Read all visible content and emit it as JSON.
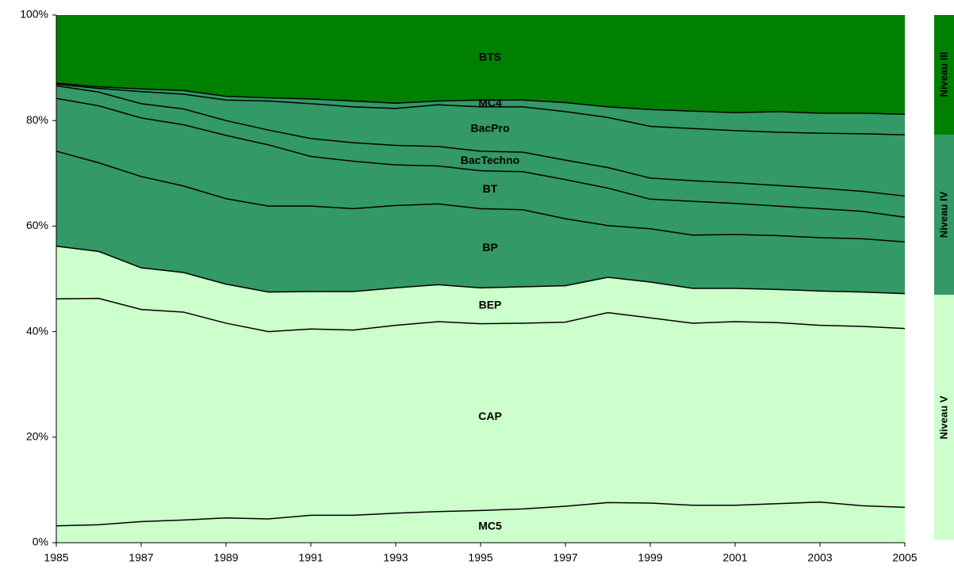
{
  "chart_data": {
    "type": "stacked_area",
    "x": [
      1985,
      1986,
      1987,
      1988,
      1989,
      1990,
      1991,
      1992,
      1993,
      1994,
      1995,
      1996,
      1997,
      1998,
      1999,
      2000,
      2001,
      2002,
      2003,
      2004,
      2005
    ],
    "series": [
      {
        "name": "MC5",
        "color": "#ccffcc",
        "values": [
          3.2,
          3.4,
          4.0,
          4.3,
          4.7,
          4.5,
          5.2,
          5.2,
          5.6,
          5.9,
          6.1,
          6.4,
          6.9,
          7.6,
          7.5,
          7.1,
          7.1,
          7.4,
          7.7,
          7.0,
          6.7
        ]
      },
      {
        "name": "CAP",
        "color": "#ccffcc",
        "values": [
          43.0,
          42.9,
          40.2,
          39.4,
          36.9,
          35.5,
          35.3,
          35.1,
          35.6,
          36.0,
          35.4,
          35.2,
          34.9,
          36.0,
          35.1,
          34.5,
          34.8,
          34.3,
          33.5,
          34.0,
          33.9
        ]
      },
      {
        "name": "BEP",
        "color": "#ccffcc",
        "values": [
          10.0,
          8.9,
          7.9,
          7.5,
          7.4,
          7.5,
          7.1,
          7.3,
          7.1,
          7.0,
          6.8,
          6.9,
          6.9,
          6.7,
          6.8,
          6.6,
          6.3,
          6.3,
          6.5,
          6.5,
          6.6
        ]
      },
      {
        "name": "BP",
        "color": "#339966",
        "values": [
          18.0,
          16.8,
          17.3,
          16.4,
          16.2,
          16.3,
          16.2,
          15.7,
          15.6,
          15.3,
          15.0,
          14.6,
          12.7,
          9.8,
          10.1,
          10.1,
          10.2,
          10.2,
          10.1,
          10.1,
          9.8
        ]
      },
      {
        "name": "BT",
        "color": "#339966",
        "values": [
          10.0,
          10.8,
          11.1,
          11.6,
          12.0,
          11.6,
          9.4,
          9.0,
          7.7,
          7.2,
          7.2,
          7.2,
          7.4,
          7.1,
          5.6,
          6.4,
          5.9,
          5.6,
          5.5,
          5.2,
          4.7
        ]
      },
      {
        "name": "BacTechno",
        "color": "#339966",
        "values": [
          2.4,
          2.6,
          2.7,
          3.0,
          2.8,
          2.8,
          3.4,
          3.5,
          3.7,
          3.7,
          3.7,
          3.7,
          3.7,
          3.9,
          4.0,
          3.9,
          3.9,
          3.9,
          3.9,
          3.8,
          4.0
        ]
      },
      {
        "name": "BacPro",
        "color": "#339966",
        "values": [
          0.3,
          0.7,
          2.3,
          2.8,
          3.9,
          5.5,
          6.6,
          6.8,
          7.0,
          7.9,
          8.4,
          8.6,
          9.2,
          9.5,
          9.8,
          9.9,
          9.9,
          10.1,
          10.4,
          10.9,
          11.6
        ]
      },
      {
        "name": "MC4",
        "color": "#339966",
        "values": [
          0.2,
          0.3,
          0.5,
          0.7,
          0.7,
          0.6,
          0.9,
          1.1,
          1.0,
          0.7,
          1.3,
          1.3,
          1.7,
          2.0,
          3.2,
          3.3,
          3.4,
          3.9,
          3.8,
          3.9,
          3.9
        ]
      },
      {
        "name": "BTS",
        "color": "#008000",
        "values": [
          12.9,
          13.6,
          14.0,
          14.3,
          15.4,
          15.7,
          15.9,
          16.3,
          16.7,
          16.3,
          16.1,
          16.1,
          16.6,
          17.4,
          17.9,
          18.2,
          18.5,
          18.3,
          18.6,
          18.6,
          18.8
        ]
      }
    ],
    "xlim": [
      1985,
      2005
    ],
    "xticks": [
      1985,
      1987,
      1989,
      1991,
      1993,
      1995,
      1997,
      1999,
      2001,
      2003,
      2005
    ],
    "ylim": [
      0,
      100
    ],
    "yticks": [
      {
        "value": 0,
        "label": "0%"
      },
      {
        "value": 20,
        "label": "20%"
      },
      {
        "value": 40,
        "label": "40%"
      },
      {
        "value": 60,
        "label": "60%"
      },
      {
        "value": 80,
        "label": "80%"
      },
      {
        "value": 100,
        "label": "100%"
      }
    ],
    "levels": [
      {
        "name": "Niveau III",
        "color": "#008000"
      },
      {
        "name": "Niveau IV",
        "color": "#339966"
      },
      {
        "name": "Niveau V",
        "color": "#ccffcc"
      }
    ]
  }
}
